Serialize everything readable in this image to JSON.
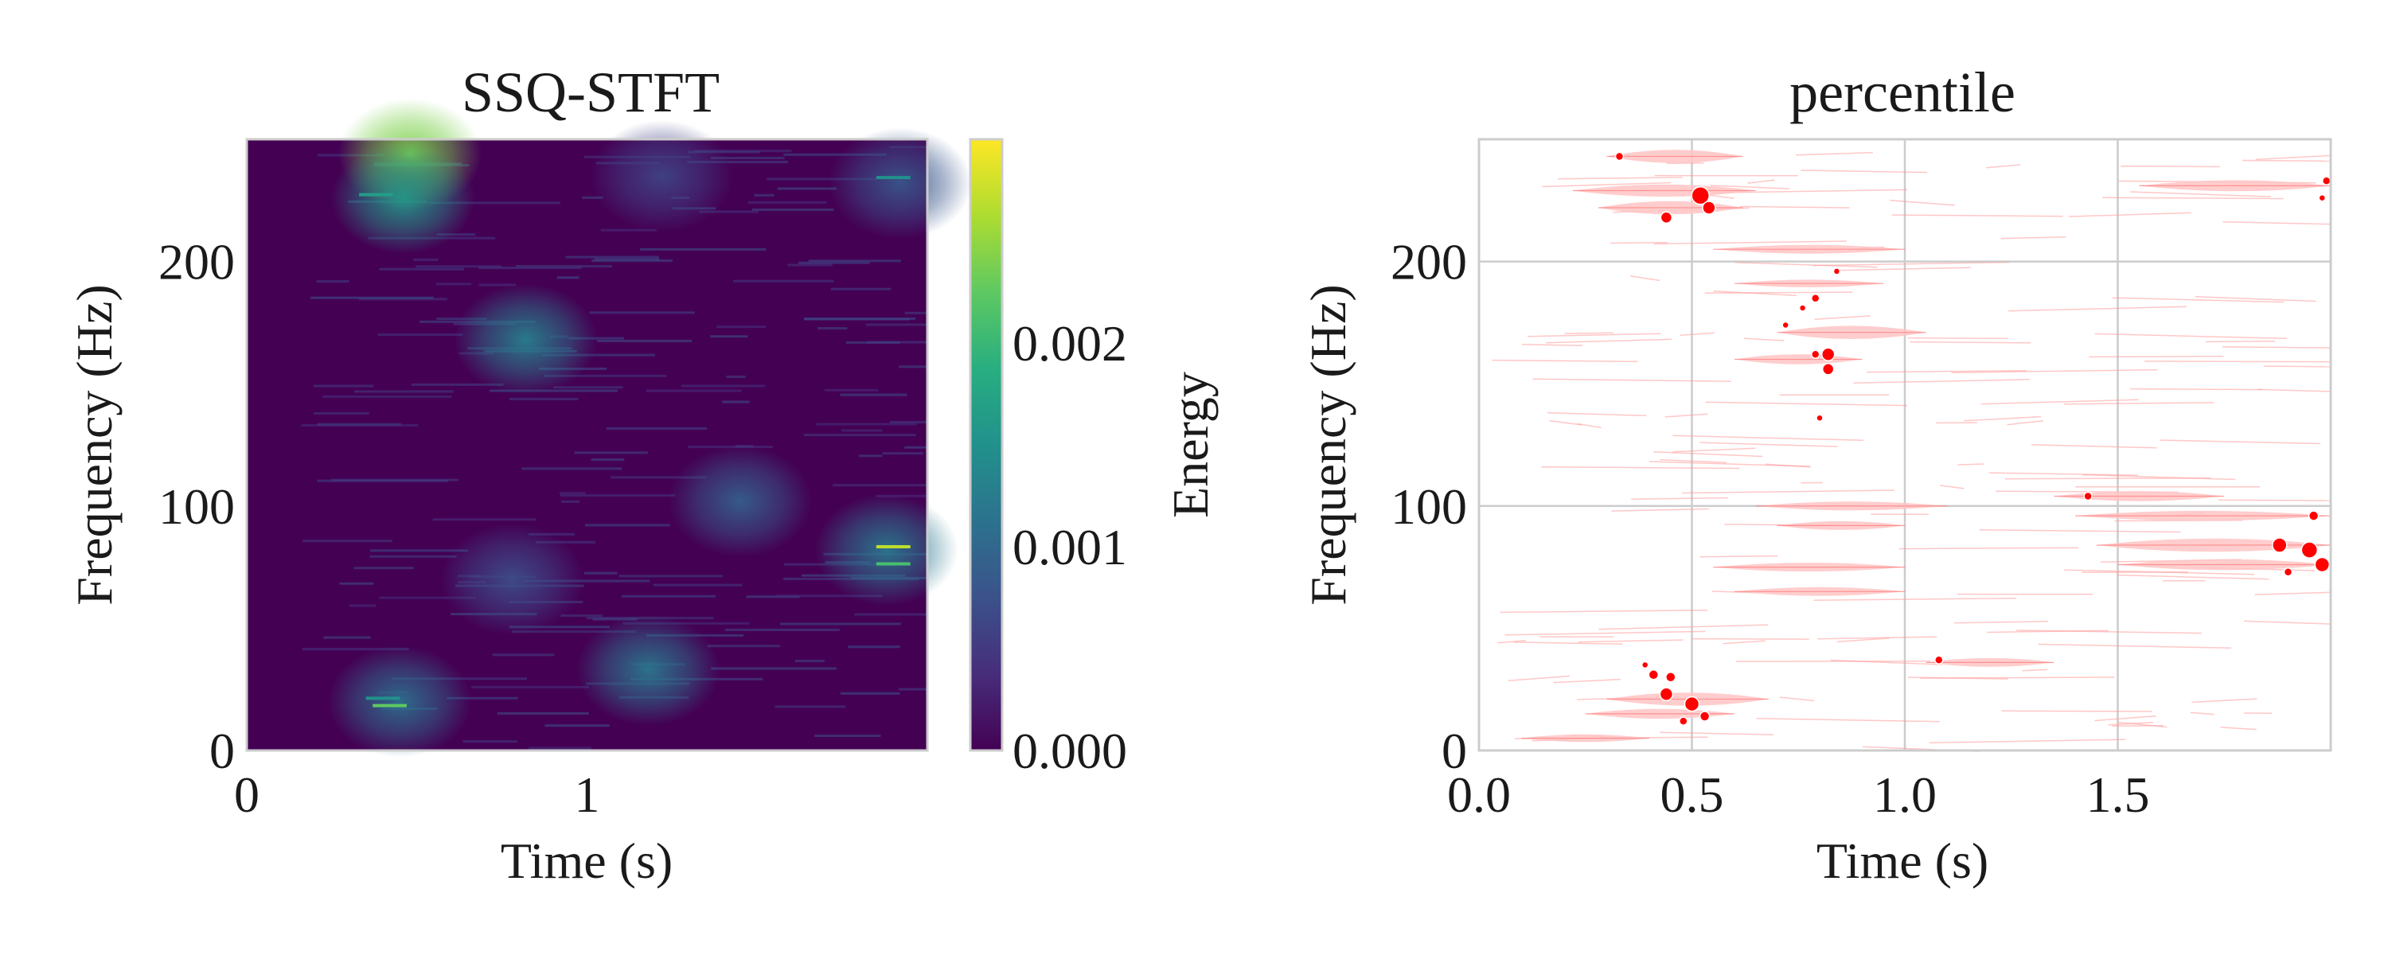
{
  "chart_data": [
    {
      "type": "heatmap",
      "title": "SSQ-STFT",
      "xlabel": "Time (s)",
      "ylabel": "Frequency (Hz)",
      "xlim": [
        0,
        2.0
      ],
      "ylim": [
        0,
        250
      ],
      "xticks": [
        0,
        1
      ],
      "xtick_labels": [
        "0",
        "1"
      ],
      "yticks": [
        0,
        100,
        200
      ],
      "ytick_labels": [
        "0",
        "100",
        "200"
      ],
      "colormap": "viridis",
      "colorbar": {
        "label": "Energy",
        "range": [
          0,
          0.003
        ],
        "ticks": [
          0,
          0.001,
          0.002
        ],
        "tick_labels": [
          "0.000",
          "0.001",
          "0.002"
        ]
      },
      "energy_blobs": [
        {
          "t": 0.48,
          "f": 244,
          "energy": 0.0024
        },
        {
          "t": 0.46,
          "f": 226,
          "energy": 0.0016
        },
        {
          "t": 0.82,
          "f": 168,
          "energy": 0.0013
        },
        {
          "t": 1.18,
          "f": 33,
          "energy": 0.0012
        },
        {
          "t": 0.45,
          "f": 20,
          "energy": 0.0011
        },
        {
          "t": 1.45,
          "f": 102,
          "energy": 0.0009
        },
        {
          "t": 1.88,
          "f": 82,
          "energy": 0.0012
        },
        {
          "t": 1.92,
          "f": 232,
          "energy": 0.0008
        },
        {
          "t": 0.78,
          "f": 70,
          "energy": 0.0007
        },
        {
          "t": 1.22,
          "f": 235,
          "energy": 0.0006
        }
      ],
      "grid": false
    },
    {
      "type": "scatter",
      "title": "percentile",
      "xlabel": "Time (s)",
      "ylabel": "Frequency (Hz)",
      "xlim": [
        0,
        2.0
      ],
      "ylim": [
        0,
        250
      ],
      "xticks": [
        0,
        0.5,
        1.0,
        1.5
      ],
      "xtick_labels": [
        "0.0",
        "0.5",
        "1.0",
        "1.5"
      ],
      "yticks": [
        0,
        100,
        200
      ],
      "ytick_labels": [
        "0",
        "100",
        "200"
      ],
      "grid": true,
      "marker_color": "#ff0000",
      "ridges": [
        {
          "t0": 0.3,
          "t1": 0.62,
          "f": 243,
          "w": 0.9
        },
        {
          "t0": 0.22,
          "t1": 0.65,
          "f": 229,
          "w": 0.8
        },
        {
          "t0": 0.28,
          "t1": 0.62,
          "f": 222,
          "w": 0.9
        },
        {
          "t0": 0.7,
          "t1": 1.05,
          "f": 171,
          "w": 0.9
        },
        {
          "t0": 0.6,
          "t1": 0.9,
          "f": 160,
          "w": 0.6
        },
        {
          "t0": 0.55,
          "t1": 1.0,
          "f": 205,
          "w": 0.5
        },
        {
          "t0": 0.6,
          "t1": 0.95,
          "f": 191,
          "w": 0.4
        },
        {
          "t0": 0.65,
          "t1": 1.1,
          "f": 100,
          "w": 0.5
        },
        {
          "t0": 0.7,
          "t1": 1.0,
          "f": 92,
          "w": 0.5
        },
        {
          "t0": 0.55,
          "t1": 1.0,
          "f": 75,
          "w": 0.5
        },
        {
          "t0": 0.6,
          "t1": 1.0,
          "f": 65,
          "w": 0.5
        },
        {
          "t0": 1.35,
          "t1": 1.75,
          "f": 104,
          "w": 0.6
        },
        {
          "t0": 1.4,
          "t1": 2.0,
          "f": 96,
          "w": 0.6
        },
        {
          "t0": 1.45,
          "t1": 2.0,
          "f": 84,
          "w": 0.9
        },
        {
          "t0": 1.5,
          "t1": 2.0,
          "f": 76,
          "w": 0.7
        },
        {
          "t0": 1.55,
          "t1": 2.0,
          "f": 231,
          "w": 0.7
        },
        {
          "t0": 0.3,
          "t1": 0.68,
          "f": 21,
          "w": 0.9
        },
        {
          "t0": 0.25,
          "t1": 0.6,
          "f": 15,
          "w": 0.6
        },
        {
          "t0": 1.05,
          "t1": 1.35,
          "f": 36,
          "w": 0.5
        },
        {
          "t0": 0.1,
          "t1": 0.4,
          "f": 5,
          "w": 0.4
        }
      ],
      "points": [
        {
          "t": 0.52,
          "f": 227,
          "s": 11
        },
        {
          "t": 0.54,
          "f": 222,
          "s": 8
        },
        {
          "t": 0.44,
          "f": 218,
          "s": 7
        },
        {
          "t": 0.33,
          "f": 243,
          "s": 5
        },
        {
          "t": 0.82,
          "f": 162,
          "s": 8
        },
        {
          "t": 0.82,
          "f": 156,
          "s": 7
        },
        {
          "t": 0.79,
          "f": 162,
          "s": 5
        },
        {
          "t": 0.79,
          "f": 185,
          "s": 5
        },
        {
          "t": 0.76,
          "f": 181,
          "s": 4
        },
        {
          "t": 0.72,
          "f": 174,
          "s": 4
        },
        {
          "t": 0.84,
          "f": 196,
          "s": 4
        },
        {
          "t": 0.8,
          "f": 136,
          "s": 4
        },
        {
          "t": 0.41,
          "f": 31,
          "s": 6
        },
        {
          "t": 0.45,
          "f": 30,
          "s": 6
        },
        {
          "t": 0.44,
          "f": 23,
          "s": 8
        },
        {
          "t": 0.5,
          "f": 19,
          "s": 9
        },
        {
          "t": 0.53,
          "f": 14,
          "s": 6
        },
        {
          "t": 0.48,
          "f": 12,
          "s": 5
        },
        {
          "t": 0.39,
          "f": 35,
          "s": 4
        },
        {
          "t": 1.08,
          "f": 37,
          "s": 5
        },
        {
          "t": 1.43,
          "f": 104,
          "s": 5
        },
        {
          "t": 1.88,
          "f": 84,
          "s": 9
        },
        {
          "t": 1.95,
          "f": 82,
          "s": 10
        },
        {
          "t": 1.98,
          "f": 76,
          "s": 9
        },
        {
          "t": 1.9,
          "f": 73,
          "s": 5
        },
        {
          "t": 1.96,
          "f": 96,
          "s": 6
        },
        {
          "t": 1.99,
          "f": 233,
          "s": 5
        },
        {
          "t": 1.98,
          "f": 226,
          "s": 4
        }
      ]
    }
  ]
}
